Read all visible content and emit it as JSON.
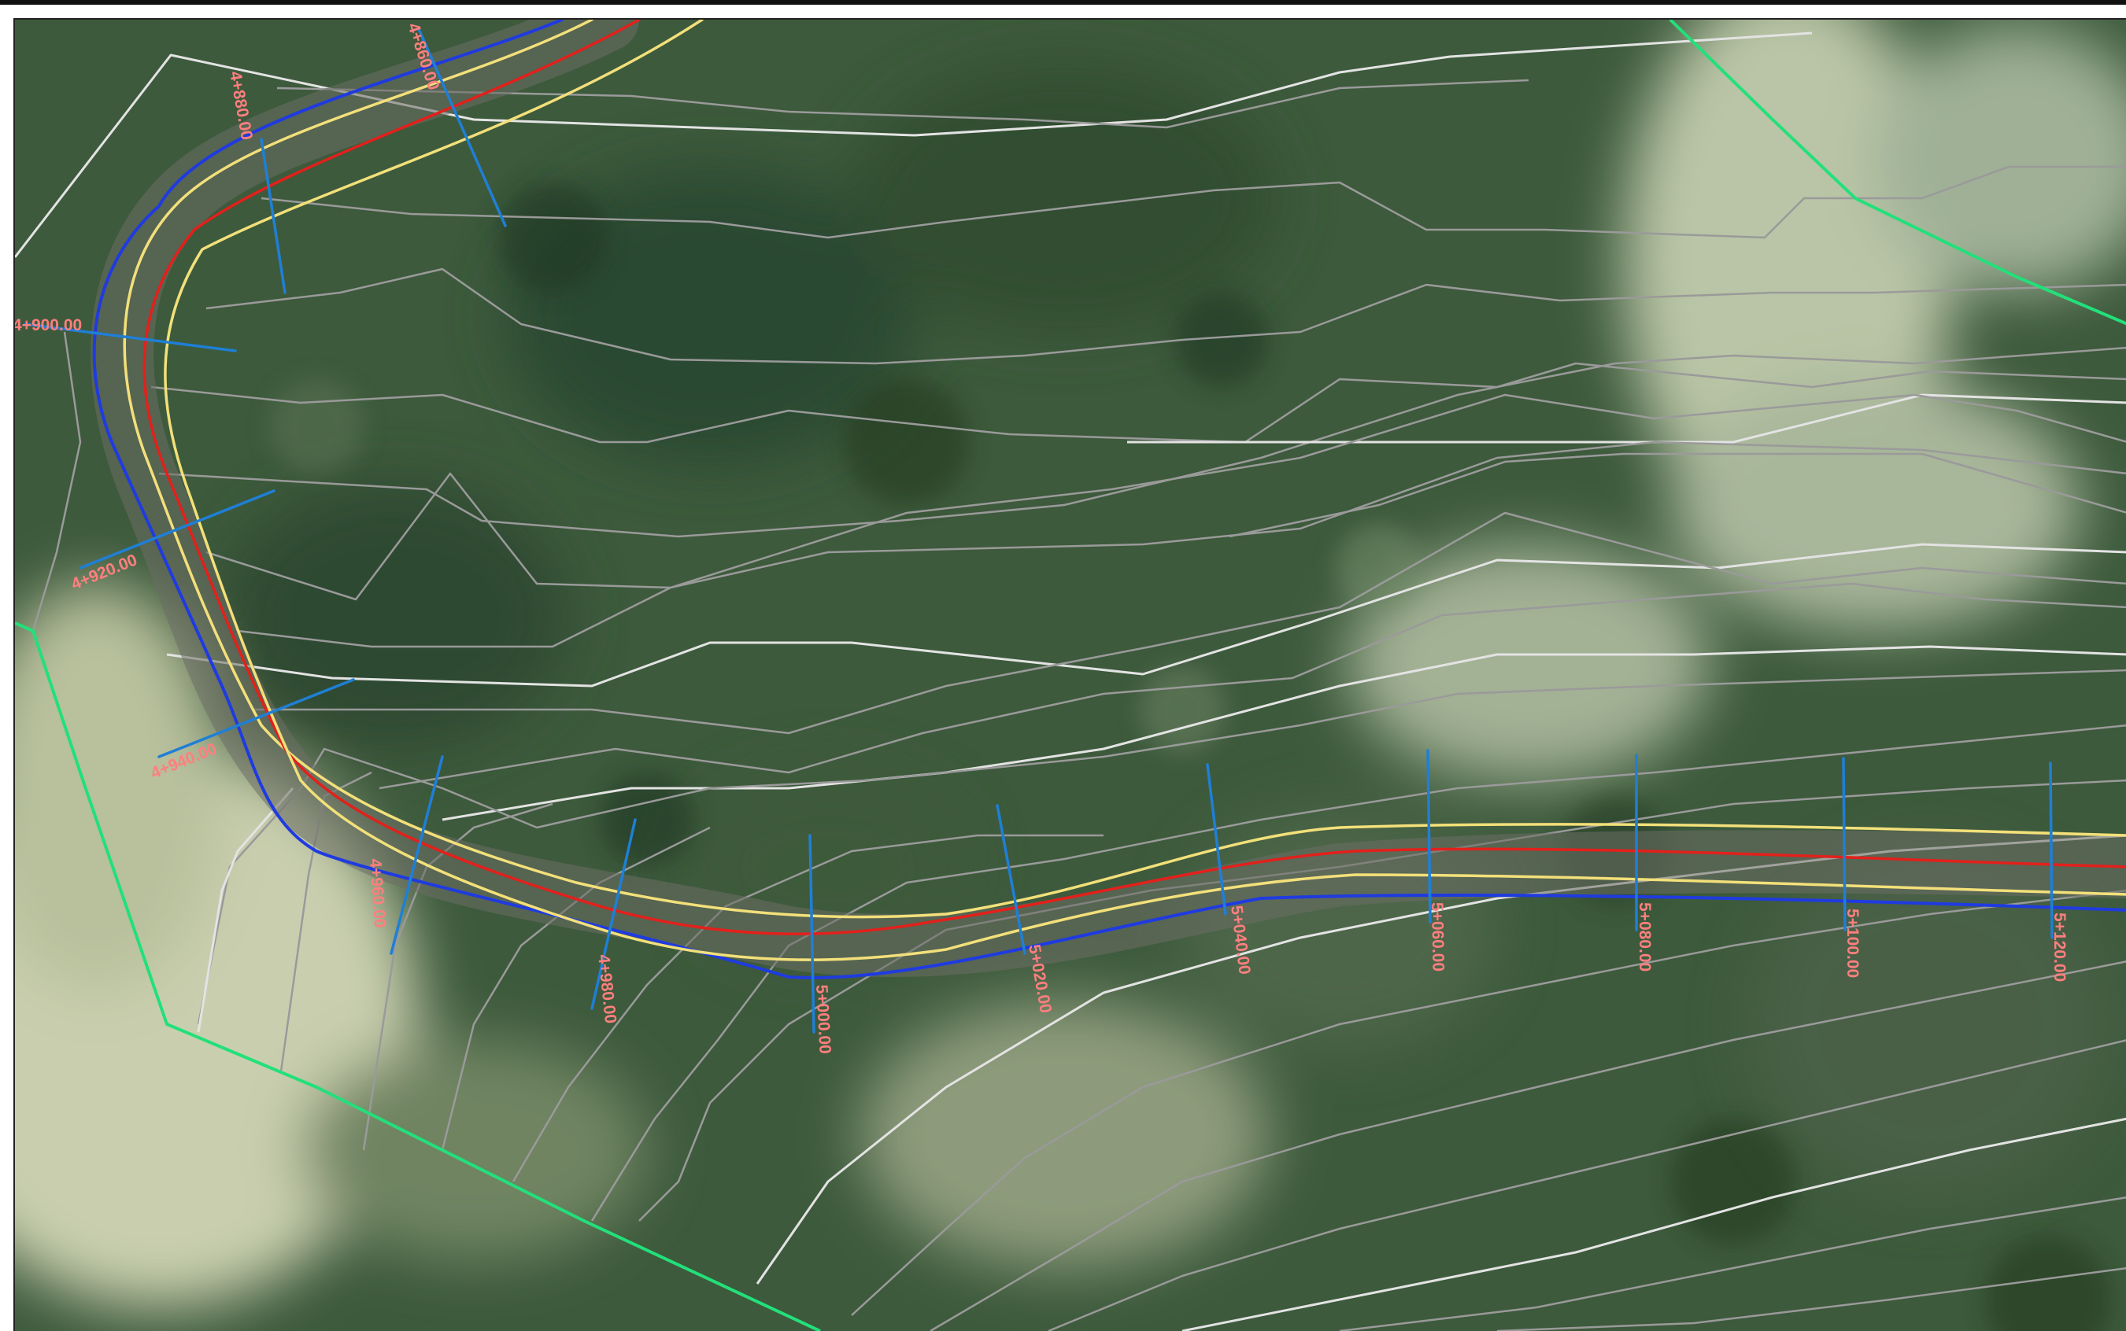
{
  "map": {
    "colors": {
      "centerline": "#e3201b",
      "edge_of_pavement": "#f3e07a",
      "grading_limit": "#1f3be0",
      "station_tick": "#1f7fd6",
      "station_label": "#ff7f7f",
      "boundary": "#22e07a",
      "contour_major": "#e8e8e8",
      "contour_minor": "#9a9a9a"
    },
    "stations": [
      {
        "label": "4+860.00"
      },
      {
        "label": "4+880.00"
      },
      {
        "label": "4+900.00"
      },
      {
        "label": "4+920.00"
      },
      {
        "label": "4+940.00"
      },
      {
        "label": "4+960.00"
      },
      {
        "label": "4+980.00"
      },
      {
        "label": "5+000.00"
      },
      {
        "label": "5+020.00"
      },
      {
        "label": "5+040.00"
      },
      {
        "label": "5+060.00"
      },
      {
        "label": "5+080.00"
      },
      {
        "label": "5+100.00"
      },
      {
        "label": "5+120.00"
      }
    ]
  }
}
